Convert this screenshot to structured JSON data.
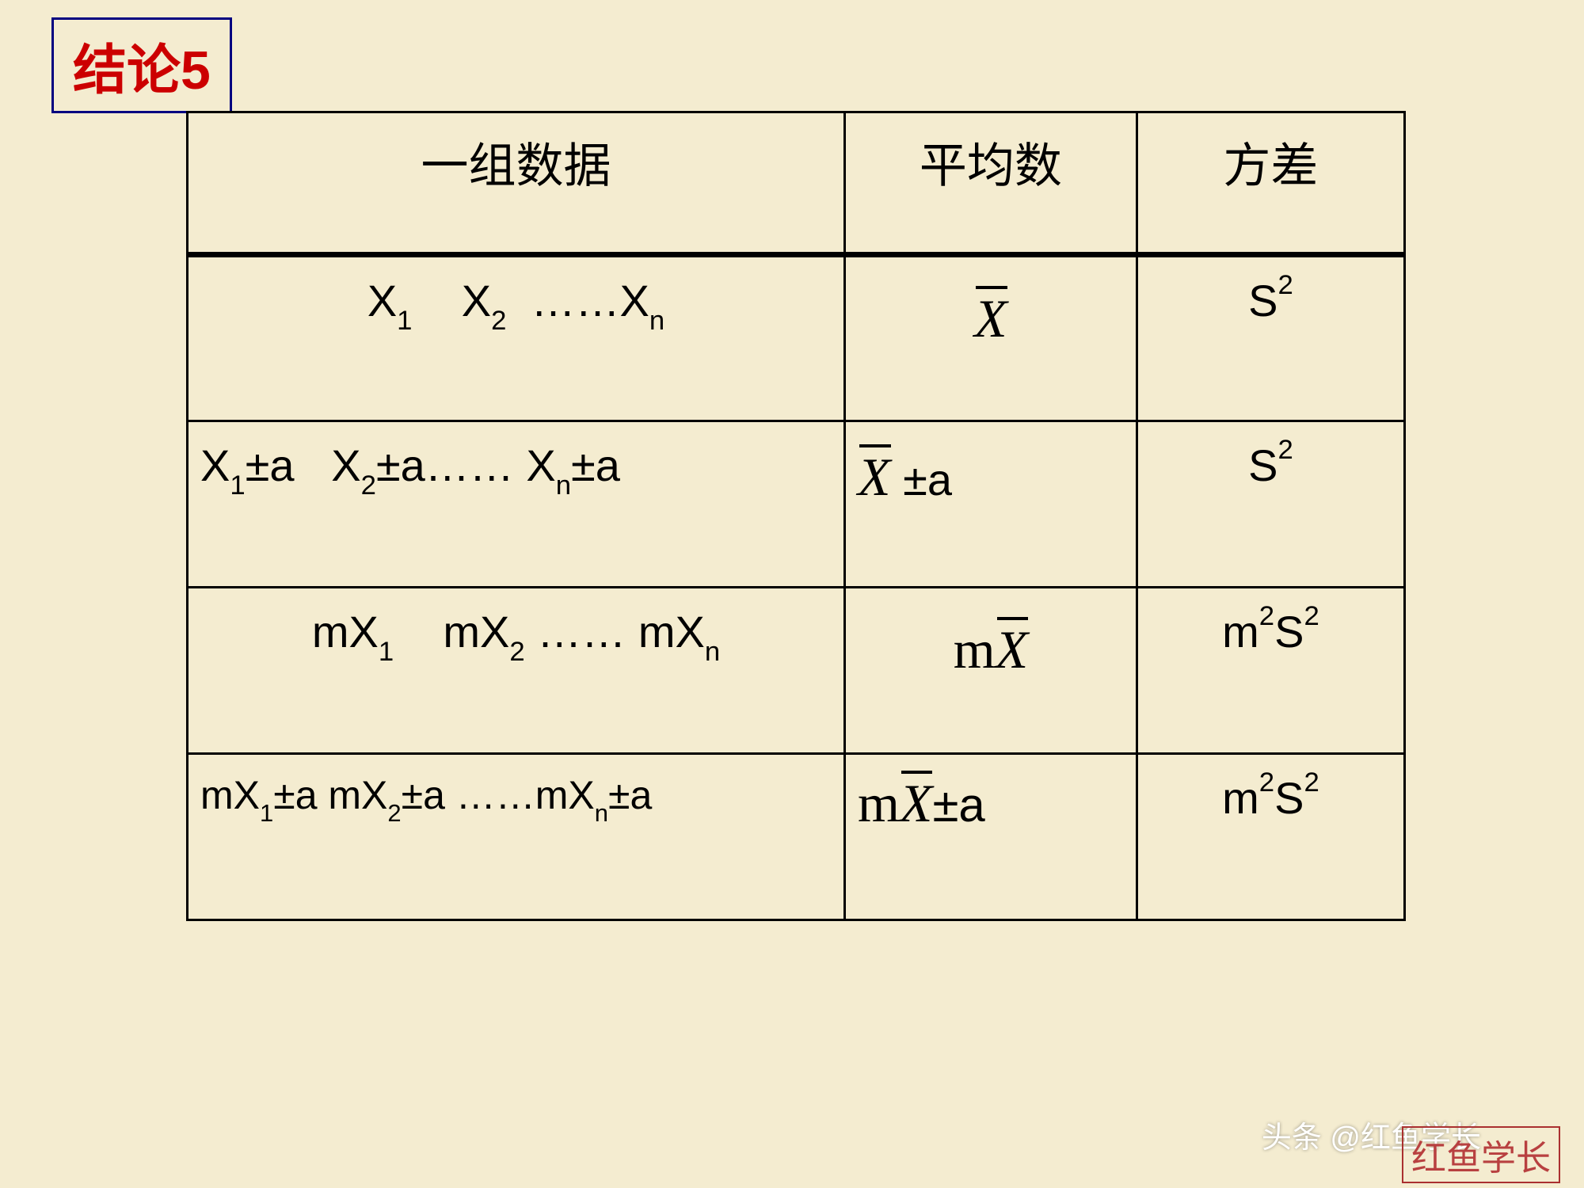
{
  "title": "结论5",
  "table": {
    "header": {
      "col1": "一组数据",
      "col2": "平均数",
      "col3": "方差"
    },
    "rows": [
      {
        "data_html": "X<span class='sub'>1</span>&nbsp;&nbsp;&nbsp;&nbsp;X<span class='sub'>2</span>&nbsp;&nbsp;……X<span class='sub'>n</span>",
        "mean_html": "<span class='xbar'>X</span>",
        "variance_html": "S<span class='sup'>2</span>",
        "data_align": "center"
      },
      {
        "data_html": "X<span class='sub'>1</span>±a&nbsp;&nbsp;&nbsp;X<span class='sub'>2</span>±a……&nbsp;X<span class='sub'>n</span>±a",
        "mean_html": "<span class='xbar'>X</span>&nbsp;<span style='font-family:Arial'>±a</span>",
        "variance_html": "S<span class='sup'>2</span>",
        "data_align": "left"
      },
      {
        "data_html": "mX<span class='sub'>1</span>&nbsp;&nbsp;&nbsp;&nbsp;mX<span class='sub'>2</span>&nbsp;……&nbsp;mX<span class='sub'>n</span>",
        "mean_html": "<span class='math-serif'>m</span><span class='xbar'>X</span>",
        "variance_html": "m<span class='sup'>2</span>S<span class='sup'>2</span>",
        "data_align": "center"
      },
      {
        "data_html": "mX<span class='sub'>1</span>±a mX<span class='sub'>2</span>±a ……mX<span class='sub'>n</span>±a",
        "mean_html": "<span class='math-serif'>m</span><span class='xbar'>X</span><span style='font-family:Arial;font-size:60px'>±a</span>",
        "variance_html": "m<span class='sup'>2</span>S<span class='sup'>2</span>",
        "data_align": "left"
      }
    ],
    "row4_fontsize": 50
  },
  "watermarks": {
    "w1": "头条 @红鱼学长",
    "w2": "红鱼学长"
  },
  "colors": {
    "background": "#f4ecd0",
    "title_text": "#cc0000",
    "title_border": "#000080",
    "table_border": "#000000",
    "text": "#000000"
  }
}
